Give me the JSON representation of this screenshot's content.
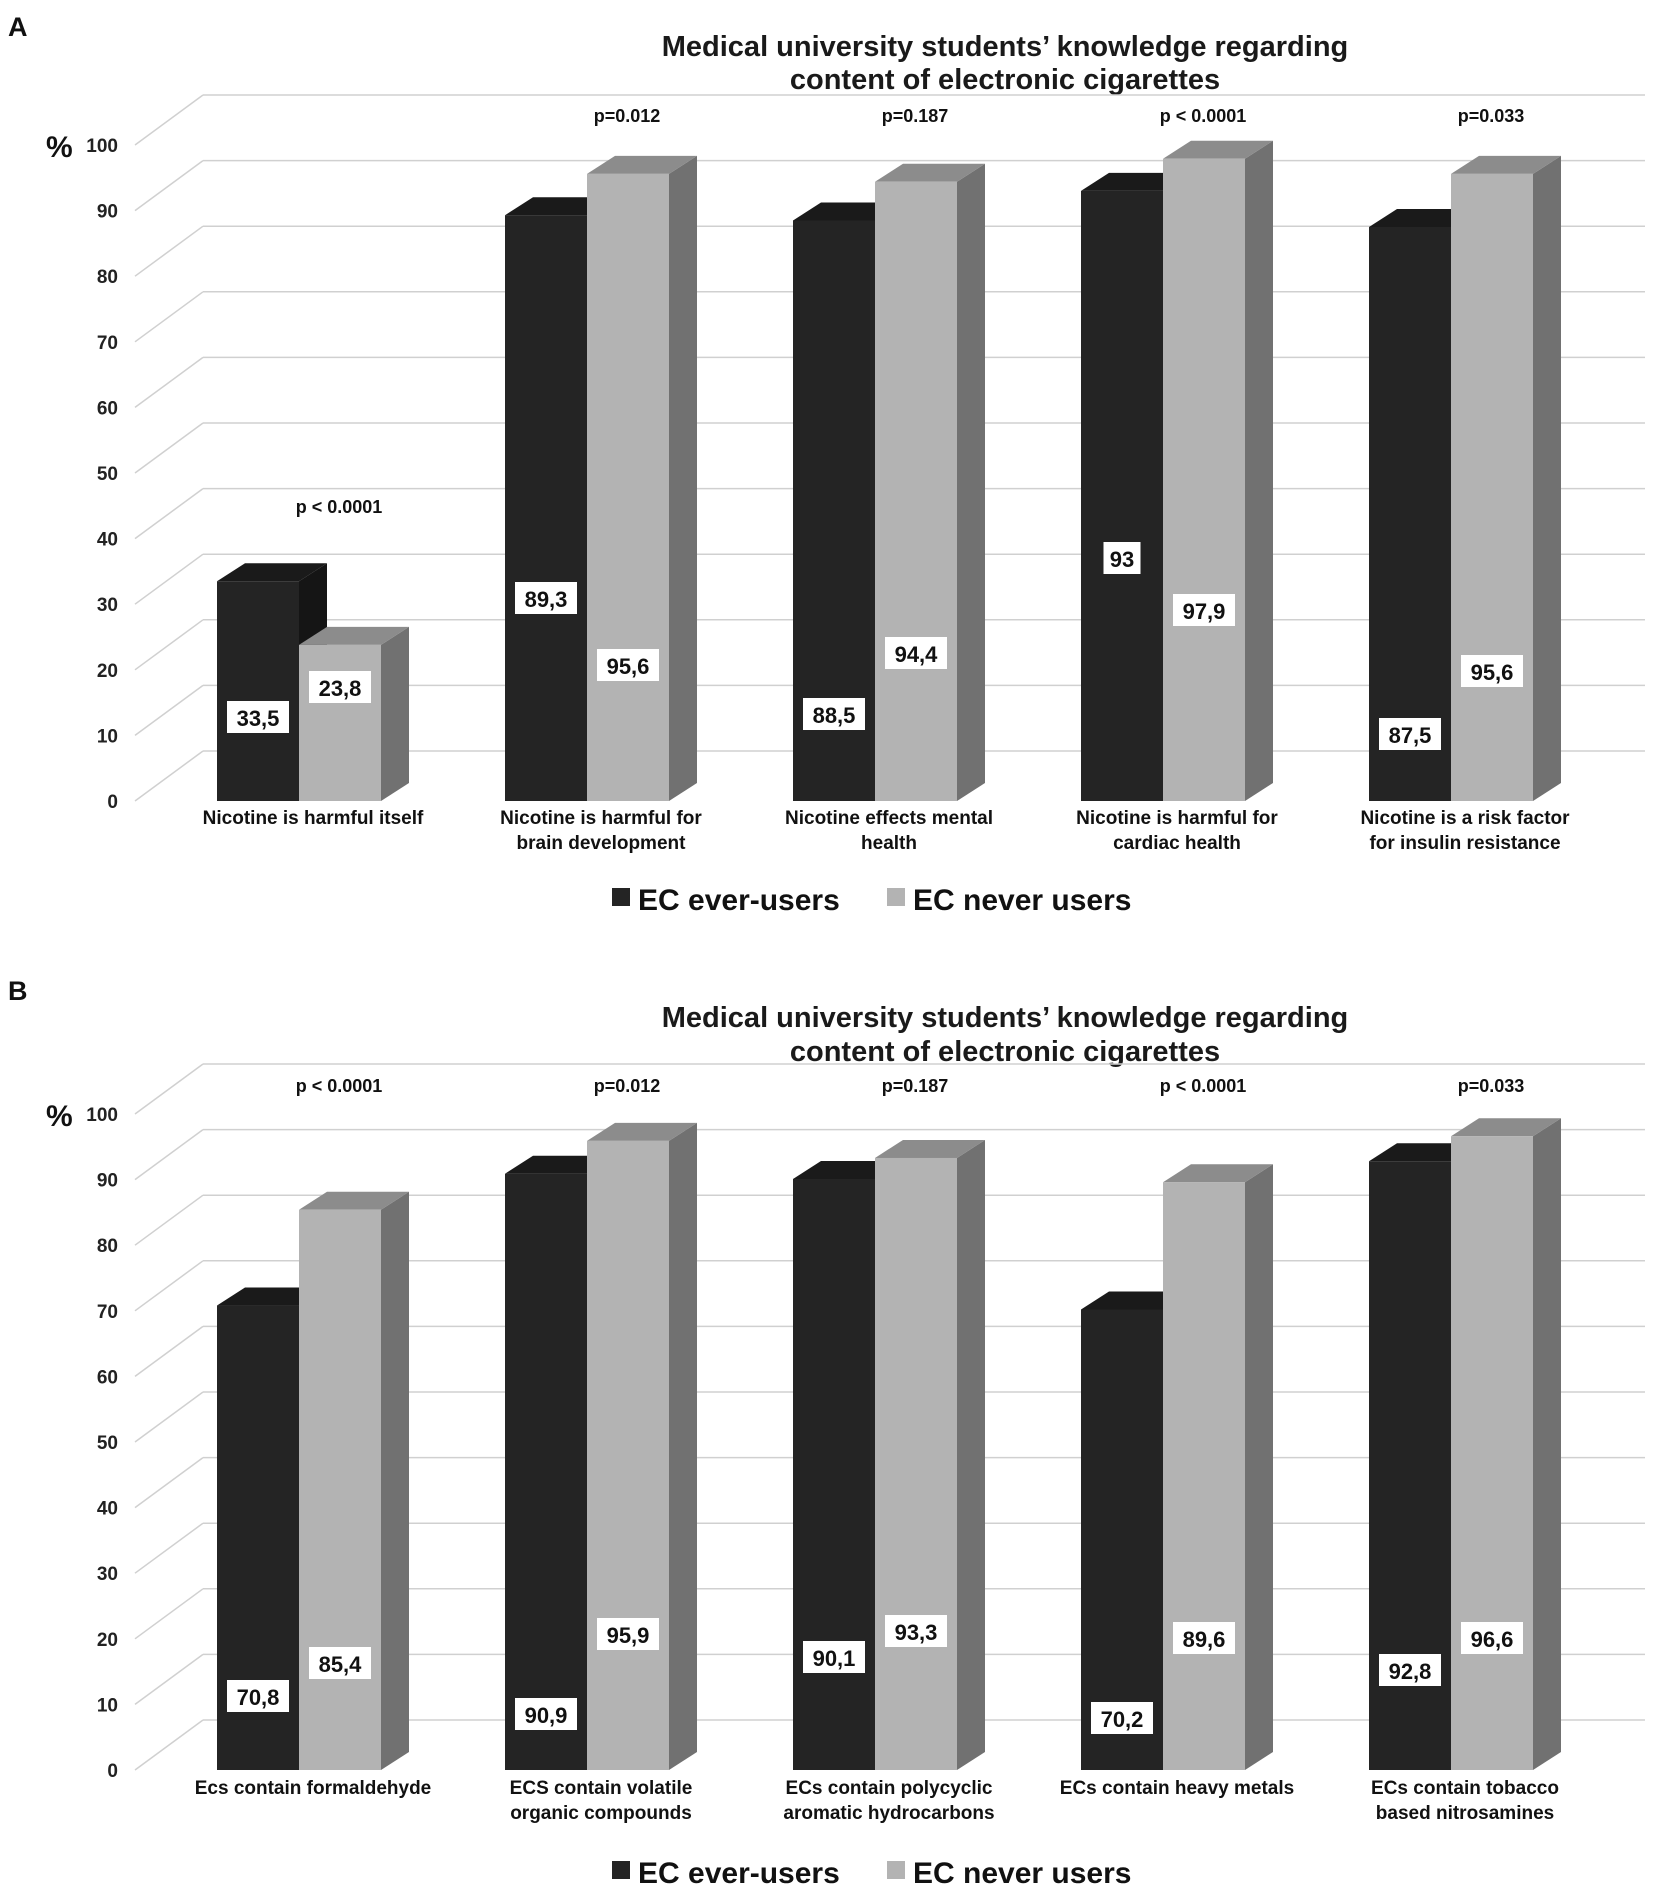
{
  "chart_data": [
    {
      "type": "bar",
      "panel_label": "A",
      "title": [
        "Medical university students’ knowledge regarding",
        "content of electronic cigarettes"
      ],
      "ylabel": "%",
      "ylim": [
        0,
        100
      ],
      "yticks": [
        "0",
        "10",
        "20",
        "30",
        "40",
        "50",
        "60",
        "70",
        "80",
        "90",
        "100"
      ],
      "categories": [
        [
          "Nicotine is harmful itself"
        ],
        [
          "Nicotine is harmful for",
          "brain development"
        ],
        [
          "Nicotine effects mental",
          "health"
        ],
        [
          "Nicotine is harmful for",
          "cardiac health"
        ],
        [
          "Nicotine is a risk factor",
          "for insulin resistance"
        ]
      ],
      "series": [
        {
          "name": "EC ever-users",
          "color": "#242424",
          "values": [
            33.5,
            89.3,
            88.5,
            93,
            87.5
          ],
          "labels": [
            "33,5",
            "89,3",
            "88,5",
            "93",
            "87,5"
          ]
        },
        {
          "name": "EC never users",
          "color": "#b3b3b3",
          "values": [
            23.8,
            95.6,
            94.4,
            97.9,
            95.6
          ],
          "labels": [
            "23,8",
            "95,6",
            "94,4",
            "97,9",
            "95,6"
          ]
        }
      ],
      "pvalues": [
        "p < 0.0001",
        "p=0.012",
        "p=0.187",
        "p < 0.0001",
        "p=0.033"
      ],
      "legend": [
        "EC ever-users",
        "EC never users"
      ]
    },
    {
      "type": "bar",
      "panel_label": "B",
      "title": [
        "Medical university students’ knowledge regarding",
        "content of electronic cigarettes"
      ],
      "ylabel": "%",
      "ylim": [
        0,
        100
      ],
      "yticks": [
        "0",
        "10",
        "20",
        "30",
        "40",
        "50",
        "60",
        "70",
        "80",
        "90",
        "100"
      ],
      "categories": [
        [
          "Ecs contain formaldehyde"
        ],
        [
          "ECS contain volatile",
          "organic compounds"
        ],
        [
          "ECs contain polycyclic",
          "aromatic hydrocarbons"
        ],
        [
          "ECs contain heavy metals"
        ],
        [
          "ECs contain tobacco",
          "based nitrosamines"
        ]
      ],
      "series": [
        {
          "name": "EC ever-users",
          "color": "#242424",
          "values": [
            70.8,
            90.9,
            90.1,
            70.2,
            92.8
          ],
          "labels": [
            "70,8",
            "90,9",
            "90,1",
            "70,2",
            "92,8"
          ]
        },
        {
          "name": "EC never users",
          "color": "#b3b3b3",
          "values": [
            85.4,
            95.9,
            93.3,
            89.6,
            96.6
          ],
          "labels": [
            "85,4",
            "95,9",
            "93,3",
            "89,6",
            "96,6"
          ]
        }
      ],
      "pvalues": [
        "p < 0.0001",
        "p=0.012",
        "p=0.187",
        "p < 0.0001",
        "p=0.033"
      ],
      "legend": [
        "EC ever-users",
        "EC never users"
      ]
    }
  ]
}
